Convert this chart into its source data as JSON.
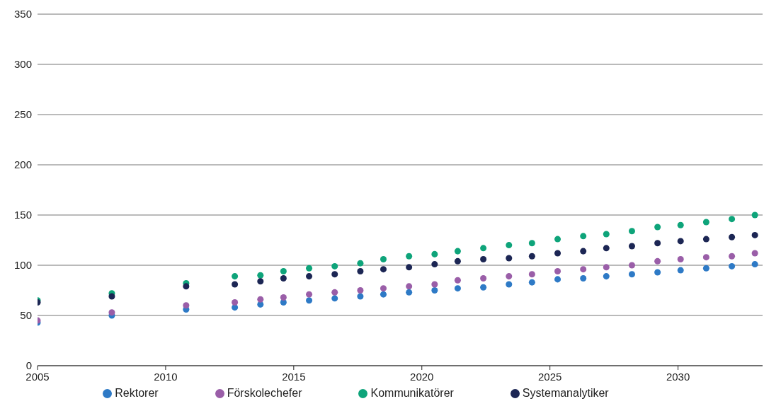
{
  "chart_data": {
    "type": "scatter",
    "x": [
      2005,
      2007.9,
      2010.8,
      2012.7,
      2013.7,
      2014.6,
      2015.6,
      2016.6,
      2017.6,
      2018.5,
      2019.5,
      2020.5,
      2021.4,
      2022.4,
      2023.4,
      2024.3,
      2025.3,
      2026.3,
      2027.2,
      2028.2,
      2029.2,
      2030.1,
      2031.1,
      2032.1,
      2033
    ],
    "series": [
      {
        "name": "Rektorer",
        "color": "#2e7ac6",
        "values": [
          43,
          50,
          56,
          58,
          61,
          63,
          65,
          67,
          69,
          71,
          73,
          75,
          77,
          78,
          81,
          83,
          86,
          87,
          89,
          91,
          93,
          95,
          97,
          99,
          101
        ]
      },
      {
        "name": "Förskolechefer",
        "color": "#9a5ea8",
        "values": [
          45,
          53,
          60,
          63,
          66,
          68,
          71,
          73,
          75,
          77,
          79,
          81,
          85,
          87,
          89,
          91,
          94,
          96,
          98,
          100,
          104,
          106,
          108,
          109,
          112
        ]
      },
      {
        "name": "Kommunikatörer",
        "color": "#0ea47a",
        "values": [
          65,
          72,
          82,
          89,
          90,
          94,
          97,
          99,
          102,
          106,
          109,
          111,
          114,
          117,
          120,
          122,
          126,
          129,
          131,
          134,
          138,
          140,
          143,
          146,
          150
        ]
      },
      {
        "name": "Systemanalytiker",
        "color": "#1c2654",
        "values": [
          63,
          69,
          79,
          81,
          84,
          87,
          89,
          91,
          94,
          96,
          98,
          101,
          104,
          106,
          107,
          109,
          112,
          114,
          117,
          119,
          122,
          124,
          126,
          128,
          130
        ]
      }
    ],
    "xlim": [
      2005,
      2033.3
    ],
    "xticks": [
      2005,
      2010,
      2015,
      2020,
      2025,
      2030
    ],
    "ylim": [
      0,
      350
    ],
    "yticks": [
      0,
      50,
      100,
      150,
      200,
      250,
      300,
      350
    ],
    "grid": "y",
    "legend": "bottom",
    "marker": "circle"
  }
}
